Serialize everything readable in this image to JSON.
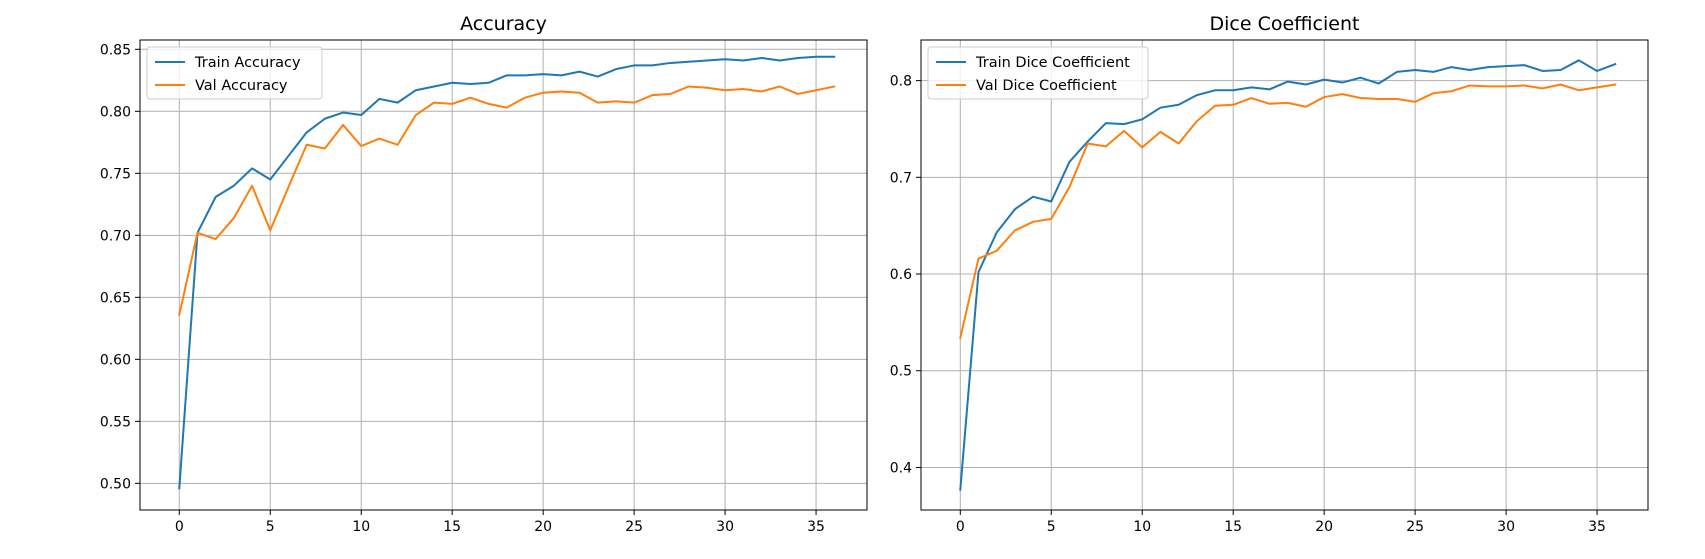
{
  "colors": {
    "train": "#1f77b4",
    "val": "#ff7f0e",
    "grid": "#b0b0b0",
    "axes": "#000000"
  },
  "chart_data": [
    {
      "type": "line",
      "title": "Accuracy",
      "xlabel": "",
      "ylabel": "",
      "xlim": [
        -2.16,
        37.8
      ],
      "ylim": [
        0.4785,
        0.8575
      ],
      "xticks": [
        0,
        5,
        10,
        15,
        20,
        25,
        30,
        35
      ],
      "yticks": [
        0.5,
        0.55,
        0.6,
        0.65,
        0.7,
        0.75,
        0.8,
        0.85
      ],
      "yticklabels": [
        "0.50",
        "0.55",
        "0.60",
        "0.65",
        "0.70",
        "0.75",
        "0.80",
        "0.85"
      ],
      "grid": true,
      "legend_position": "upper-left",
      "x": [
        0,
        1,
        2,
        3,
        4,
        5,
        6,
        7,
        8,
        9,
        10,
        11,
        12,
        13,
        14,
        15,
        16,
        17,
        18,
        19,
        20,
        21,
        22,
        23,
        24,
        25,
        26,
        27,
        28,
        29,
        30,
        31,
        32,
        33,
        34,
        35,
        36
      ],
      "series": [
        {
          "name": "Train Accuracy",
          "values": [
            0.496,
            0.702,
            0.731,
            0.74,
            0.754,
            0.745,
            0.764,
            0.783,
            0.794,
            0.799,
            0.797,
            0.81,
            0.807,
            0.817,
            0.82,
            0.823,
            0.822,
            0.823,
            0.829,
            0.829,
            0.83,
            0.829,
            0.832,
            0.828,
            0.834,
            0.837,
            0.837,
            0.839,
            0.84,
            0.841,
            0.842,
            0.841,
            0.843,
            0.841,
            0.843,
            0.844,
            0.844
          ]
        },
        {
          "name": "Val Accuracy",
          "values": [
            0.636,
            0.702,
            0.697,
            0.714,
            0.74,
            0.704,
            0.739,
            0.773,
            0.77,
            0.789,
            0.772,
            0.778,
            0.773,
            0.797,
            0.807,
            0.806,
            0.811,
            0.806,
            0.803,
            0.811,
            0.815,
            0.816,
            0.815,
            0.807,
            0.808,
            0.807,
            0.813,
            0.814,
            0.82,
            0.819,
            0.817,
            0.818,
            0.816,
            0.82,
            0.814,
            0.817,
            0.82
          ]
        }
      ]
    },
    {
      "type": "line",
      "title": "Dice Coefficient",
      "xlabel": "",
      "ylabel": "",
      "xlim": [
        -2.16,
        37.8
      ],
      "ylim": [
        0.356,
        0.842
      ],
      "xticks": [
        0,
        5,
        10,
        15,
        20,
        25,
        30,
        35
      ],
      "yticks": [
        0.4,
        0.5,
        0.6,
        0.7,
        0.8
      ],
      "yticklabels": [
        "0.4",
        "0.5",
        "0.6",
        "0.7",
        "0.8"
      ],
      "grid": true,
      "legend_position": "upper-left",
      "x": [
        0,
        1,
        2,
        3,
        4,
        5,
        6,
        7,
        8,
        9,
        10,
        11,
        12,
        13,
        14,
        15,
        16,
        17,
        18,
        19,
        20,
        21,
        22,
        23,
        24,
        25,
        26,
        27,
        28,
        29,
        30,
        31,
        32,
        33,
        34,
        35,
        36
      ],
      "series": [
        {
          "name": "Train Dice Coefficient",
          "values": [
            0.377,
            0.602,
            0.643,
            0.667,
            0.68,
            0.675,
            0.716,
            0.737,
            0.756,
            0.755,
            0.76,
            0.772,
            0.775,
            0.785,
            0.79,
            0.79,
            0.793,
            0.791,
            0.799,
            0.796,
            0.801,
            0.798,
            0.803,
            0.797,
            0.809,
            0.811,
            0.809,
            0.814,
            0.811,
            0.814,
            0.815,
            0.816,
            0.81,
            0.811,
            0.821,
            0.81,
            0.817
          ]
        },
        {
          "name": "Val Dice Coefficient",
          "values": [
            0.534,
            0.616,
            0.624,
            0.645,
            0.654,
            0.657,
            0.69,
            0.735,
            0.732,
            0.748,
            0.731,
            0.747,
            0.735,
            0.758,
            0.774,
            0.775,
            0.782,
            0.776,
            0.777,
            0.773,
            0.783,
            0.786,
            0.782,
            0.781,
            0.781,
            0.778,
            0.787,
            0.789,
            0.795,
            0.794,
            0.794,
            0.795,
            0.792,
            0.796,
            0.79,
            0.793,
            0.796
          ]
        }
      ]
    }
  ]
}
